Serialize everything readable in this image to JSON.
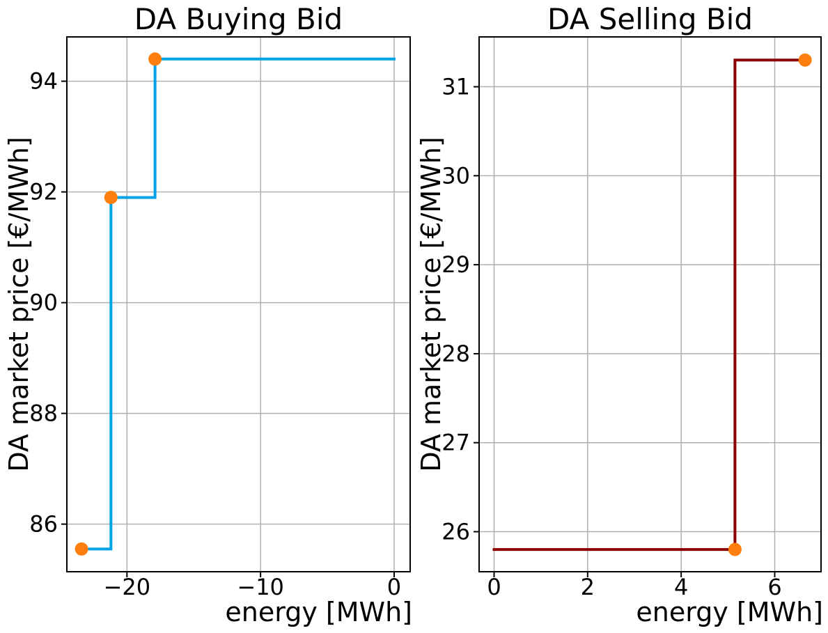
{
  "figure": {
    "background": "#ffffff"
  },
  "styles": {
    "grid_color": "#b0b0b0",
    "spine_color": "#000000",
    "tick_color": "#000000",
    "text_color": "#000000",
    "marker_color": "#ff7f0e"
  },
  "chart_data": [
    {
      "type": "line",
      "style": "step",
      "title": "DA Buying Bid",
      "xlabel": "energy [MWh]",
      "ylabel": "DA market price [€/MWh]",
      "xlim": [
        -24.5,
        1.2
      ],
      "ylim": [
        85.14,
        94.8
      ],
      "xticks": [
        -20,
        -10,
        0
      ],
      "xtick_labels": [
        "−20",
        "−10",
        "0"
      ],
      "yticks": [
        86,
        88,
        90,
        92,
        94
      ],
      "ytick_labels": [
        "86",
        "88",
        "90",
        "92",
        "94"
      ],
      "grid": true,
      "legend": null,
      "line_color": "#00a2e8",
      "marker_color": "#ff7f0e",
      "step_path": [
        [
          -23.4,
          85.55
        ],
        [
          -21.2,
          85.55
        ],
        [
          -21.2,
          91.9
        ],
        [
          -17.9,
          91.9
        ],
        [
          -17.9,
          94.4
        ],
        [
          0,
          94.4
        ]
      ],
      "points": [
        [
          -23.4,
          85.55
        ],
        [
          -21.2,
          91.9
        ],
        [
          -17.9,
          94.4
        ]
      ]
    },
    {
      "type": "line",
      "style": "step",
      "title": "DA Selling Bid",
      "xlabel": "energy [MWh]",
      "ylabel": "DA market price [€/MWh]",
      "xlim": [
        -0.32,
        6.99
      ],
      "ylim": [
        25.55,
        31.56
      ],
      "xticks": [
        0,
        2,
        4,
        6
      ],
      "xtick_labels": [
        "0",
        "2",
        "4",
        "6"
      ],
      "yticks": [
        26,
        27,
        28,
        29,
        30,
        31
      ],
      "ytick_labels": [
        "26",
        "27",
        "28",
        "29",
        "30",
        "31"
      ],
      "grid": true,
      "legend": null,
      "line_color": "#8b0000",
      "marker_color": "#ff7f0e",
      "step_path": [
        [
          0,
          25.8
        ],
        [
          5.15,
          25.8
        ],
        [
          5.15,
          31.3
        ],
        [
          6.65,
          31.3
        ]
      ],
      "points": [
        [
          5.15,
          25.8
        ],
        [
          6.65,
          31.3
        ]
      ]
    }
  ]
}
